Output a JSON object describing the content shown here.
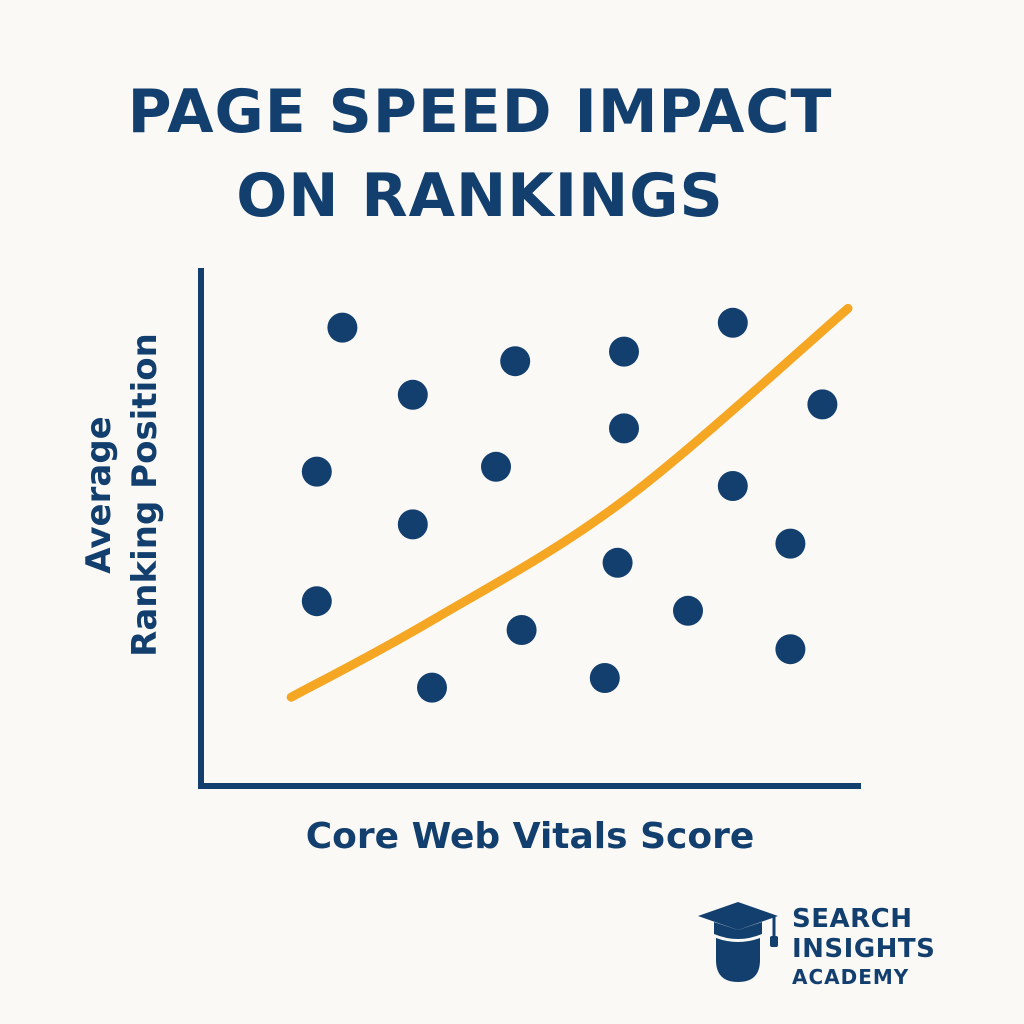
{
  "colors": {
    "primary": "#123f6e",
    "accent": "#f5a623",
    "background": "#faf9f6"
  },
  "chart_data": {
    "type": "scatter",
    "title_lines": [
      "PAGE SPEED IMPACT",
      "ON RANKINGS"
    ],
    "xlabel": "Core Web Vitals Score",
    "ylabel_lines": [
      "Average",
      "Ranking Position"
    ],
    "xlim": [
      0,
      100
    ],
    "ylim": [
      0,
      100
    ],
    "grid": false,
    "legend": "none",
    "points": [
      {
        "x": 16,
        "y": 88
      },
      {
        "x": 12,
        "y": 58
      },
      {
        "x": 12,
        "y": 31
      },
      {
        "x": 27,
        "y": 74
      },
      {
        "x": 27,
        "y": 47
      },
      {
        "x": 30,
        "y": 13
      },
      {
        "x": 43,
        "y": 81
      },
      {
        "x": 40,
        "y": 59
      },
      {
        "x": 44,
        "y": 25
      },
      {
        "x": 60,
        "y": 83
      },
      {
        "x": 60,
        "y": 67
      },
      {
        "x": 59,
        "y": 39
      },
      {
        "x": 57,
        "y": 15
      },
      {
        "x": 70,
        "y": 29
      },
      {
        "x": 77,
        "y": 55
      },
      {
        "x": 77,
        "y": 89
      },
      {
        "x": 86,
        "y": 43
      },
      {
        "x": 86,
        "y": 21
      },
      {
        "x": 91,
        "y": 72
      }
    ],
    "trend_line": [
      {
        "x": 8,
        "y": 11
      },
      {
        "x": 30,
        "y": 27
      },
      {
        "x": 60,
        "y": 52
      },
      {
        "x": 95,
        "y": 92
      }
    ]
  },
  "logo": {
    "line1": "SEARCH",
    "line2": "INSIGHTS",
    "line3": "ACADEMY",
    "icon": "graduation-cap-head-icon"
  }
}
